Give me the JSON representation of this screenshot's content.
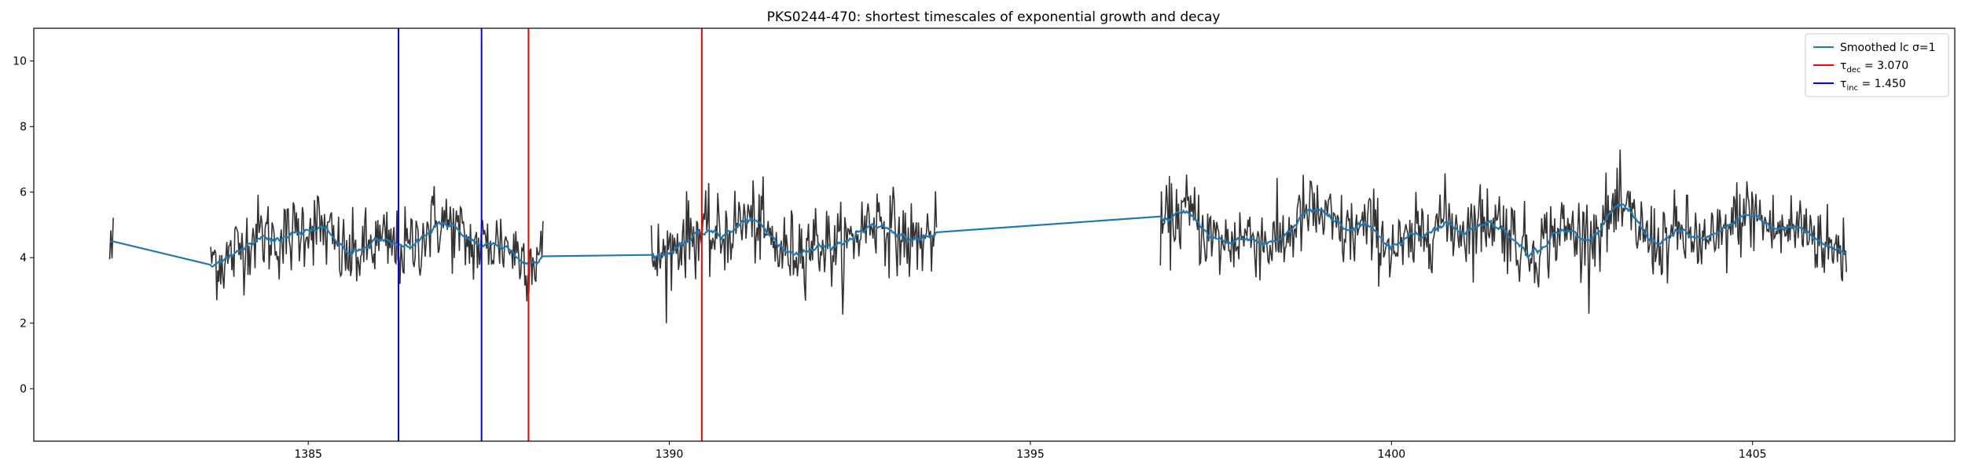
{
  "chart_data": {
    "type": "line",
    "title": "PKS0244-470: shortest timescales of exponential growth and decay",
    "xlabel": "",
    "ylabel": "",
    "xlim": [
      1381.2,
      1407.8
    ],
    "ylim": [
      -1.6,
      11.0
    ],
    "xticks": [
      1385,
      1390,
      1395,
      1400,
      1405
    ],
    "yticks": [
      0,
      2,
      4,
      6,
      8,
      10
    ],
    "grid": false,
    "legend_position": "top-right",
    "colors": {
      "data": "#333333",
      "smoothed": "#1f77b4",
      "decay": "#ff0000",
      "growth": "#0000ff"
    },
    "legend": [
      {
        "label": "Smoothed lc σ=1",
        "color": "#1f77b4"
      },
      {
        "label": "τ_dec = 3.070",
        "color": "#ff0000"
      },
      {
        "label": "τ_inc = 1.450",
        "color": "#0000ff"
      }
    ],
    "vlines": [
      {
        "series": "τ_inc = 1.450",
        "x": 1386.25,
        "color": "#0000ff"
      },
      {
        "series": "τ_inc = 1.450",
        "x": 1387.4,
        "color": "#0000ff"
      },
      {
        "series": "τ_dec = 3.070",
        "x": 1388.05,
        "color": "#ff0000"
      },
      {
        "series": "τ_dec = 3.070",
        "x": 1390.45,
        "color": "#ff0000"
      }
    ],
    "segments": [
      {
        "start": 1382.25,
        "end": 1382.3,
        "mean": 4.3,
        "amplitude": 1.2
      },
      {
        "start": 1383.65,
        "end": 1388.25,
        "mean": 4.5,
        "amplitude": 1.1
      },
      {
        "start": 1389.75,
        "end": 1393.7,
        "mean": 4.6,
        "amplitude": 1.1
      },
      {
        "start": 1396.8,
        "end": 1406.3,
        "mean": 4.8,
        "amplitude": 1.1
      }
    ],
    "smoothed_anchor_points": [
      {
        "x": 1382.25,
        "y": 4.1
      },
      {
        "x": 1382.32,
        "y": 4.75
      },
      {
        "x": 1383.6,
        "y": 5.25
      },
      {
        "x": 1388.3,
        "y": 4.35
      },
      {
        "x": 1389.75,
        "y": 4.0
      },
      {
        "x": 1393.75,
        "y": 4.25
      },
      {
        "x": 1396.8,
        "y": 4.4
      }
    ]
  }
}
